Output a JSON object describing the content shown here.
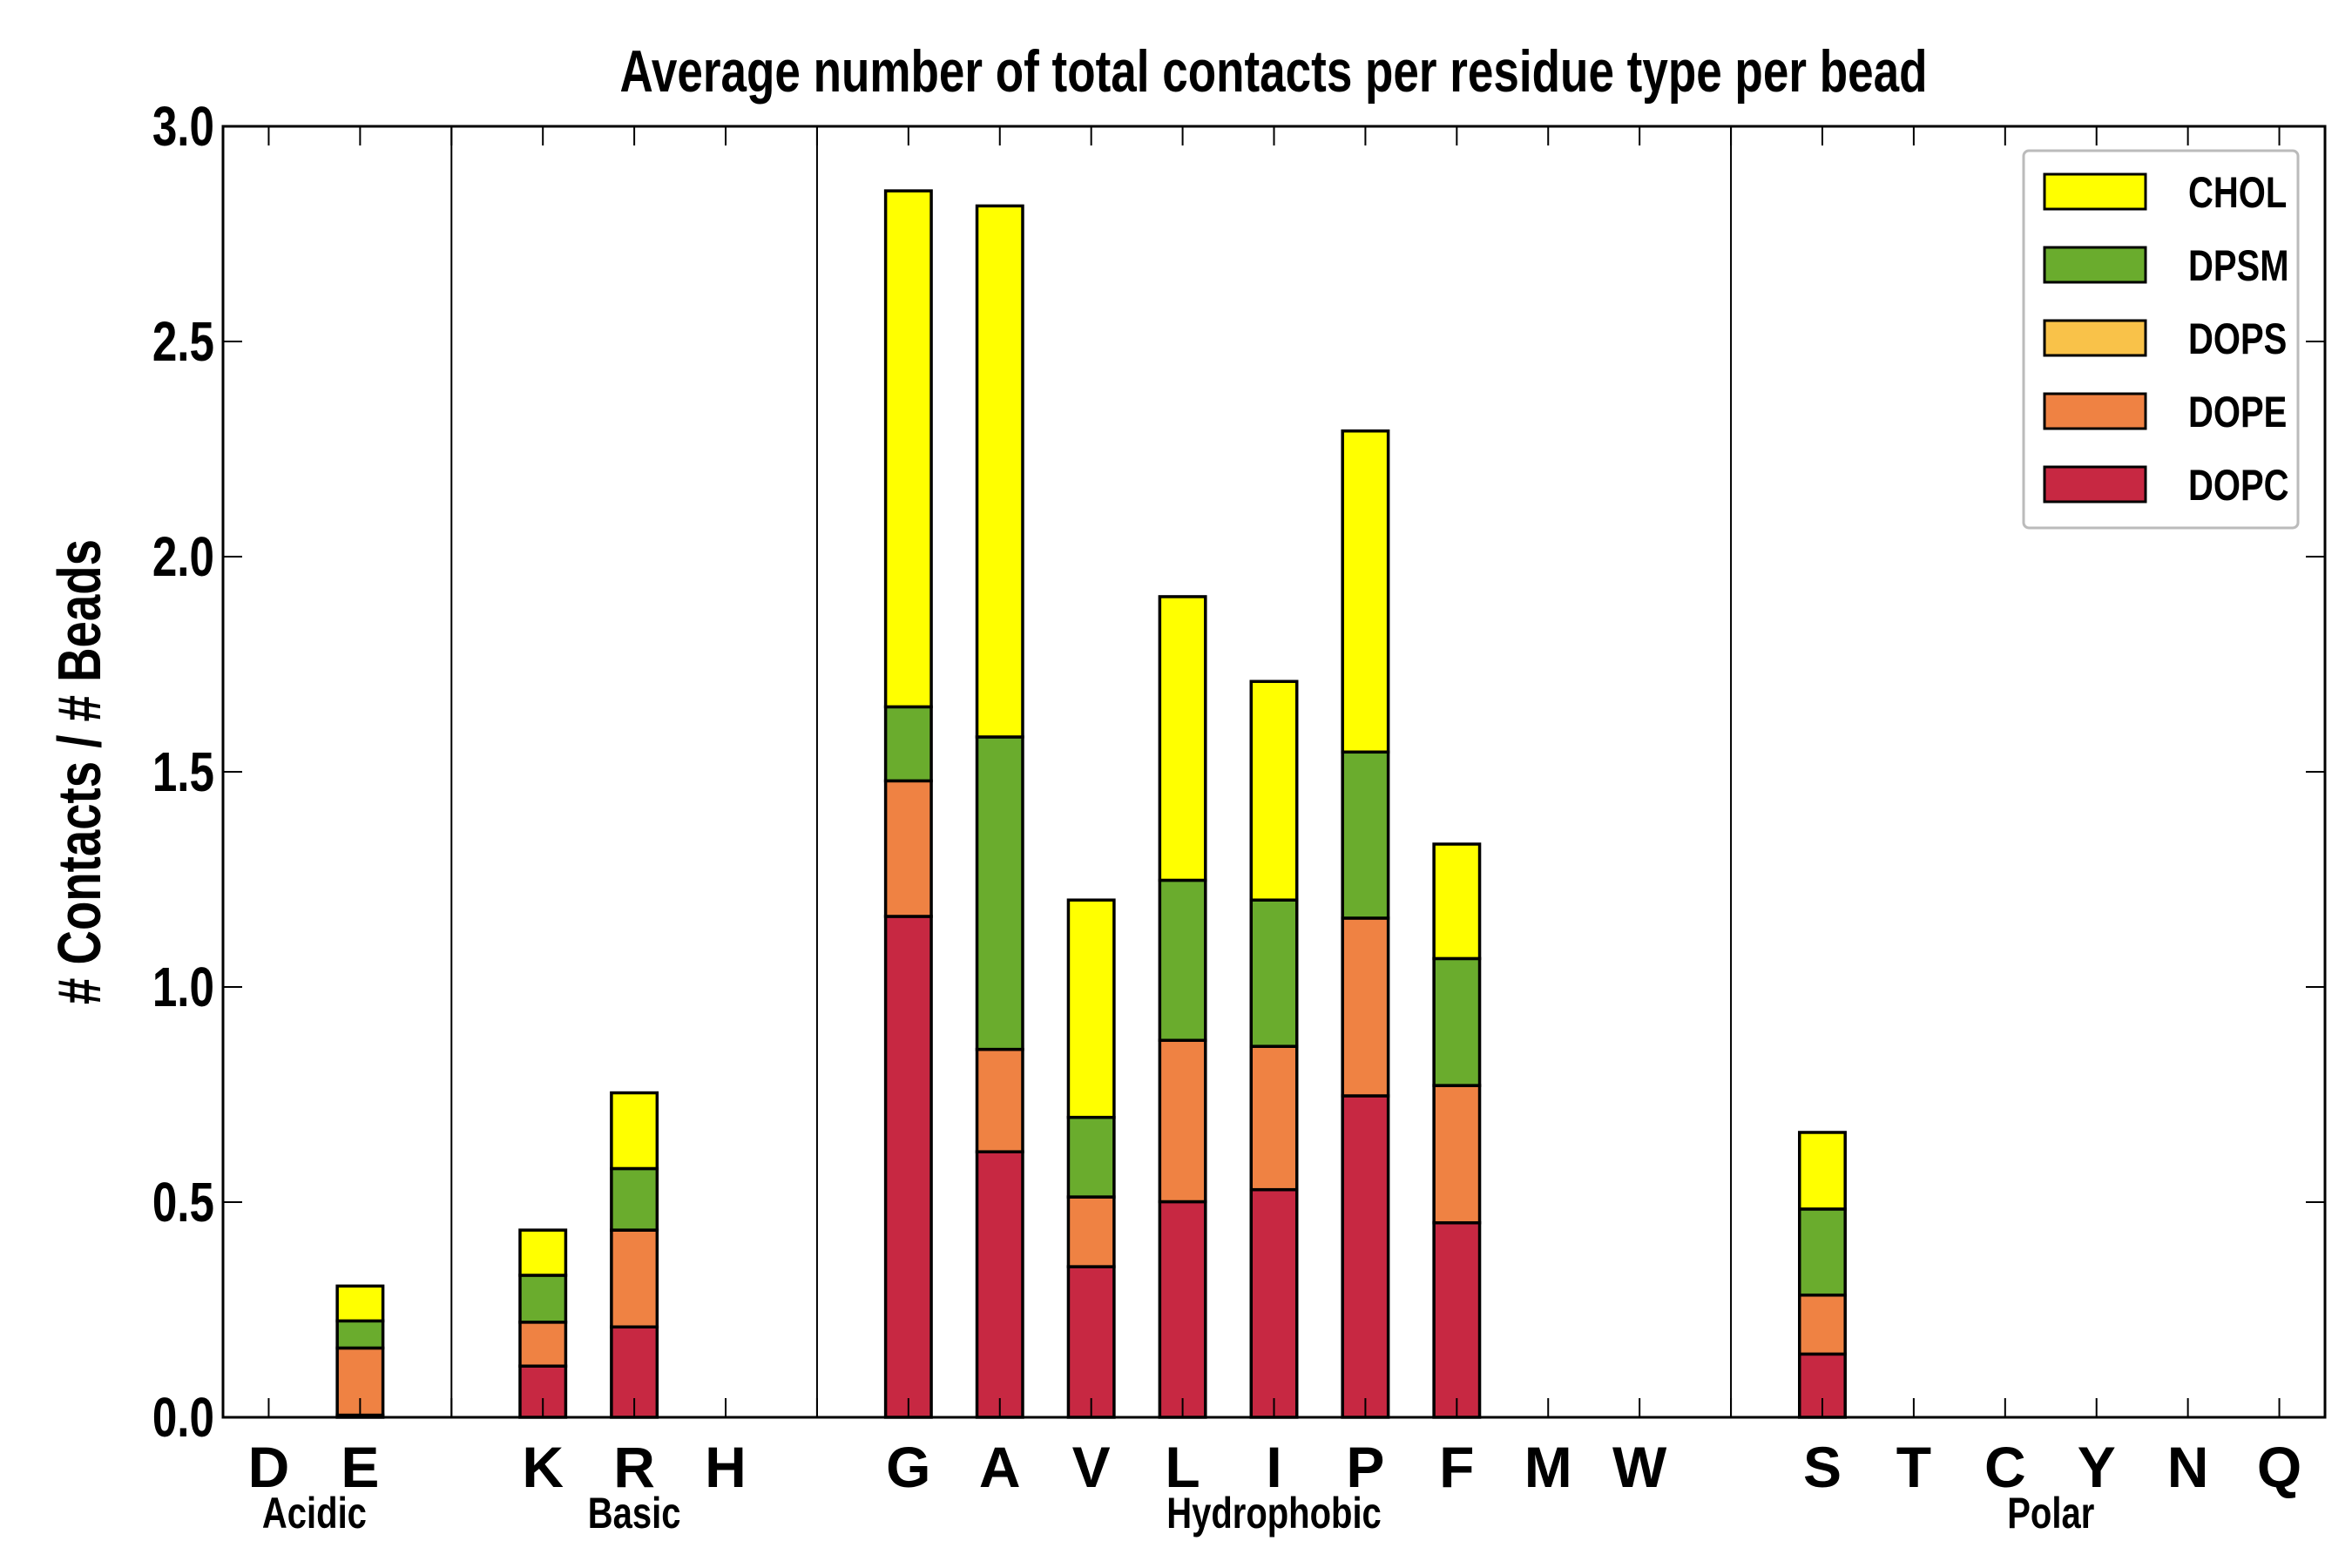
{
  "chart_data": {
    "type": "bar",
    "stacked": true,
    "title": "Average number of total contacts per residue type per bead",
    "xlabel": "",
    "ylabel": "# Contacts / # Beads",
    "ylim": [
      0,
      3.0
    ],
    "yticks": [
      "0.0",
      "0.5",
      "1.0",
      "1.5",
      "2.0",
      "2.5",
      "3.0"
    ],
    "legend_position": "top-right",
    "categories": [
      "D",
      "E",
      "",
      "K",
      "R",
      "H",
      "",
      "G",
      "A",
      "V",
      "L",
      "I",
      "P",
      "F",
      "M",
      "W",
      "",
      "S",
      "T",
      "C",
      "Y",
      "N",
      "Q"
    ],
    "groups": [
      {
        "label": "Acidic",
        "center": 0.5
      },
      {
        "label": "Basic",
        "center": 4
      },
      {
        "label": "Hydrophobic",
        "center": 11
      },
      {
        "label": "Polar",
        "center": 19.5
      }
    ],
    "separators": [
      2,
      6,
      16
    ],
    "series": [
      {
        "name": "DOPC",
        "color": "#c72842",
        "values": [
          0,
          0.005,
          0,
          0.119,
          0.21,
          0,
          0,
          1.164,
          0.617,
          0.35,
          0.501,
          0.529,
          0.747,
          0.452,
          0,
          0,
          0,
          0.147,
          0,
          0,
          0,
          0,
          0
        ]
      },
      {
        "name": "DOPE",
        "color": "#ef8243",
        "values": [
          0,
          0.156,
          0,
          0.102,
          0.225,
          0,
          0,
          0.315,
          0.238,
          0.162,
          0.375,
          0.333,
          0.413,
          0.319,
          0,
          0,
          0,
          0.137,
          0,
          0,
          0,
          0,
          0
        ]
      },
      {
        "name": "DOPS",
        "color": "#f9c249",
        "values": [
          0,
          0,
          0,
          0,
          0,
          0,
          0,
          0,
          0,
          0,
          0,
          0,
          0,
          0,
          0,
          0,
          0,
          0,
          0,
          0,
          0,
          0,
          0
        ]
      },
      {
        "name": "DPSM",
        "color": "#6aac2d",
        "values": [
          0,
          0.063,
          0,
          0.109,
          0.143,
          0,
          0,
          0.172,
          0.726,
          0.185,
          0.372,
          0.34,
          0.386,
          0.295,
          0,
          0,
          0,
          0.2,
          0,
          0,
          0,
          0,
          0
        ]
      },
      {
        "name": "CHOL",
        "color": "#ffff00",
        "values": [
          0,
          0.081,
          0,
          0.105,
          0.176,
          0,
          0,
          1.199,
          1.234,
          0.505,
          0.659,
          0.508,
          0.746,
          0.266,
          0,
          0,
          0,
          0.178,
          0,
          0,
          0,
          0,
          0
        ]
      }
    ]
  }
}
